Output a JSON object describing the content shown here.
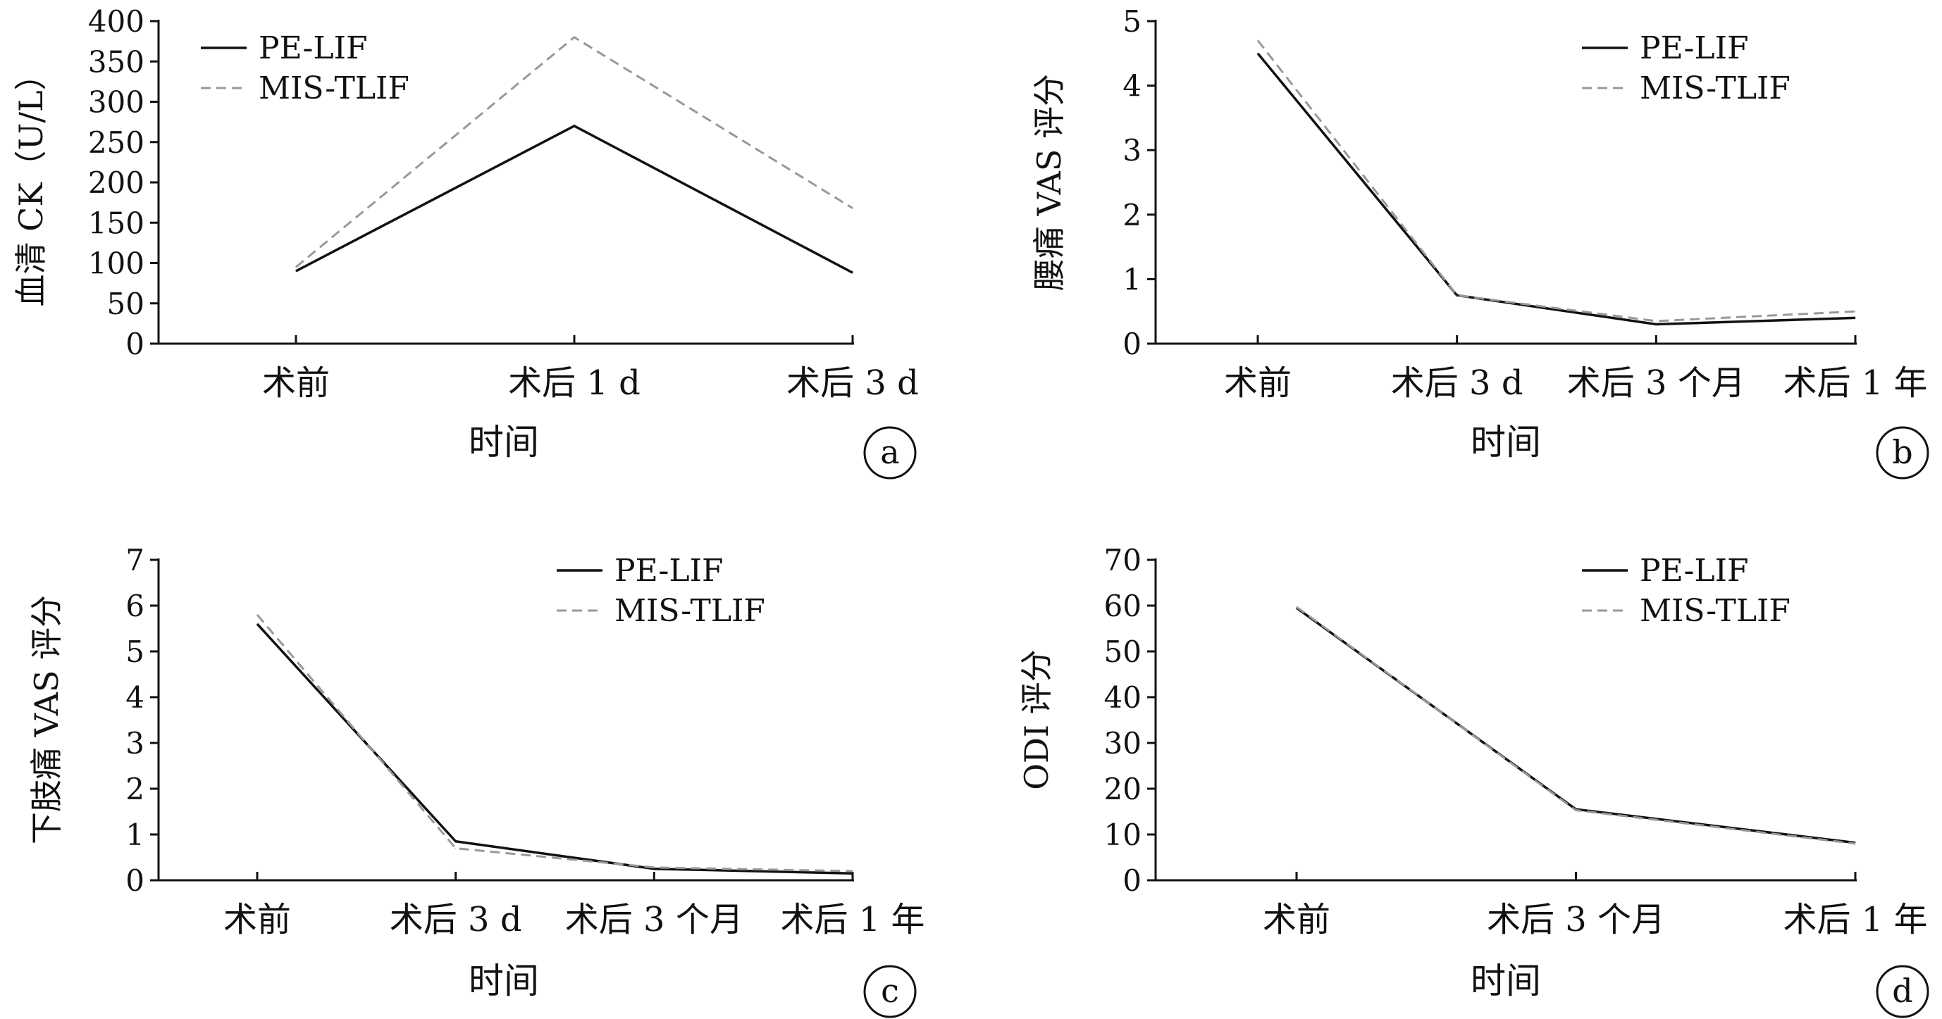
{
  "chart_data": [
    {
      "type": "line",
      "panel_label": "a",
      "categories": [
        "术前",
        "术后 1 d",
        "术后 3 d"
      ],
      "series": [
        {
          "name": "PE-LIF",
          "values": [
            90,
            270,
            88
          ]
        },
        {
          "name": "MIS-TLIF",
          "values": [
            95,
            380,
            168
          ]
        }
      ],
      "xlabel": "时间",
      "ylabel": "血清 CK（U/L）",
      "ylim": [
        0,
        400
      ],
      "yticks": [
        0,
        50,
        100,
        150,
        200,
        250,
        300,
        350,
        400
      ],
      "legend_position": "top-left",
      "grid": false
    },
    {
      "type": "line",
      "panel_label": "b",
      "categories": [
        "术前",
        "术后 3 d",
        "术后 3 个月",
        "术后 1 年"
      ],
      "series": [
        {
          "name": "PE-LIF",
          "values": [
            4.5,
            0.75,
            0.3,
            0.4
          ]
        },
        {
          "name": "MIS-TLIF",
          "values": [
            4.7,
            0.75,
            0.35,
            0.5
          ]
        }
      ],
      "xlabel": "时间",
      "ylabel": "腰痛 VAS 评分",
      "ylim": [
        0,
        5
      ],
      "yticks": [
        0,
        1,
        2,
        3,
        4,
        5
      ],
      "legend_position": "top-right",
      "grid": false
    },
    {
      "type": "line",
      "panel_label": "c",
      "categories": [
        "术前",
        "术后 3 d",
        "术后 3 个月",
        "术后 1 年"
      ],
      "series": [
        {
          "name": "PE-LIF",
          "values": [
            5.6,
            0.85,
            0.25,
            0.15
          ]
        },
        {
          "name": "MIS-TLIF",
          "values": [
            5.8,
            0.7,
            0.28,
            0.2
          ]
        }
      ],
      "xlabel": "时间",
      "ylabel": "下肢痛 VAS 评分",
      "ylim": [
        0,
        7
      ],
      "yticks": [
        0,
        1,
        2,
        3,
        4,
        5,
        6,
        7
      ],
      "legend_position": "top-right",
      "grid": false
    },
    {
      "type": "line",
      "panel_label": "d",
      "categories": [
        "术前",
        "术后 3 个月",
        "术后 1 年"
      ],
      "series": [
        {
          "name": "PE-LIF",
          "values": [
            59.5,
            15.5,
            8.2
          ]
        },
        {
          "name": "MIS-TLIF",
          "values": [
            59.7,
            15.3,
            8.0
          ]
        }
      ],
      "xlabel": "时间",
      "ylabel": "ODI 评分",
      "ylim": [
        0,
        70
      ],
      "yticks": [
        0,
        10,
        20,
        30,
        40,
        50,
        60,
        70
      ],
      "legend_position": "top-right",
      "grid": false
    }
  ],
  "colors": {
    "PE-LIF": "#111111",
    "MIS-TLIF": "#999999",
    "axis": "#111111"
  }
}
